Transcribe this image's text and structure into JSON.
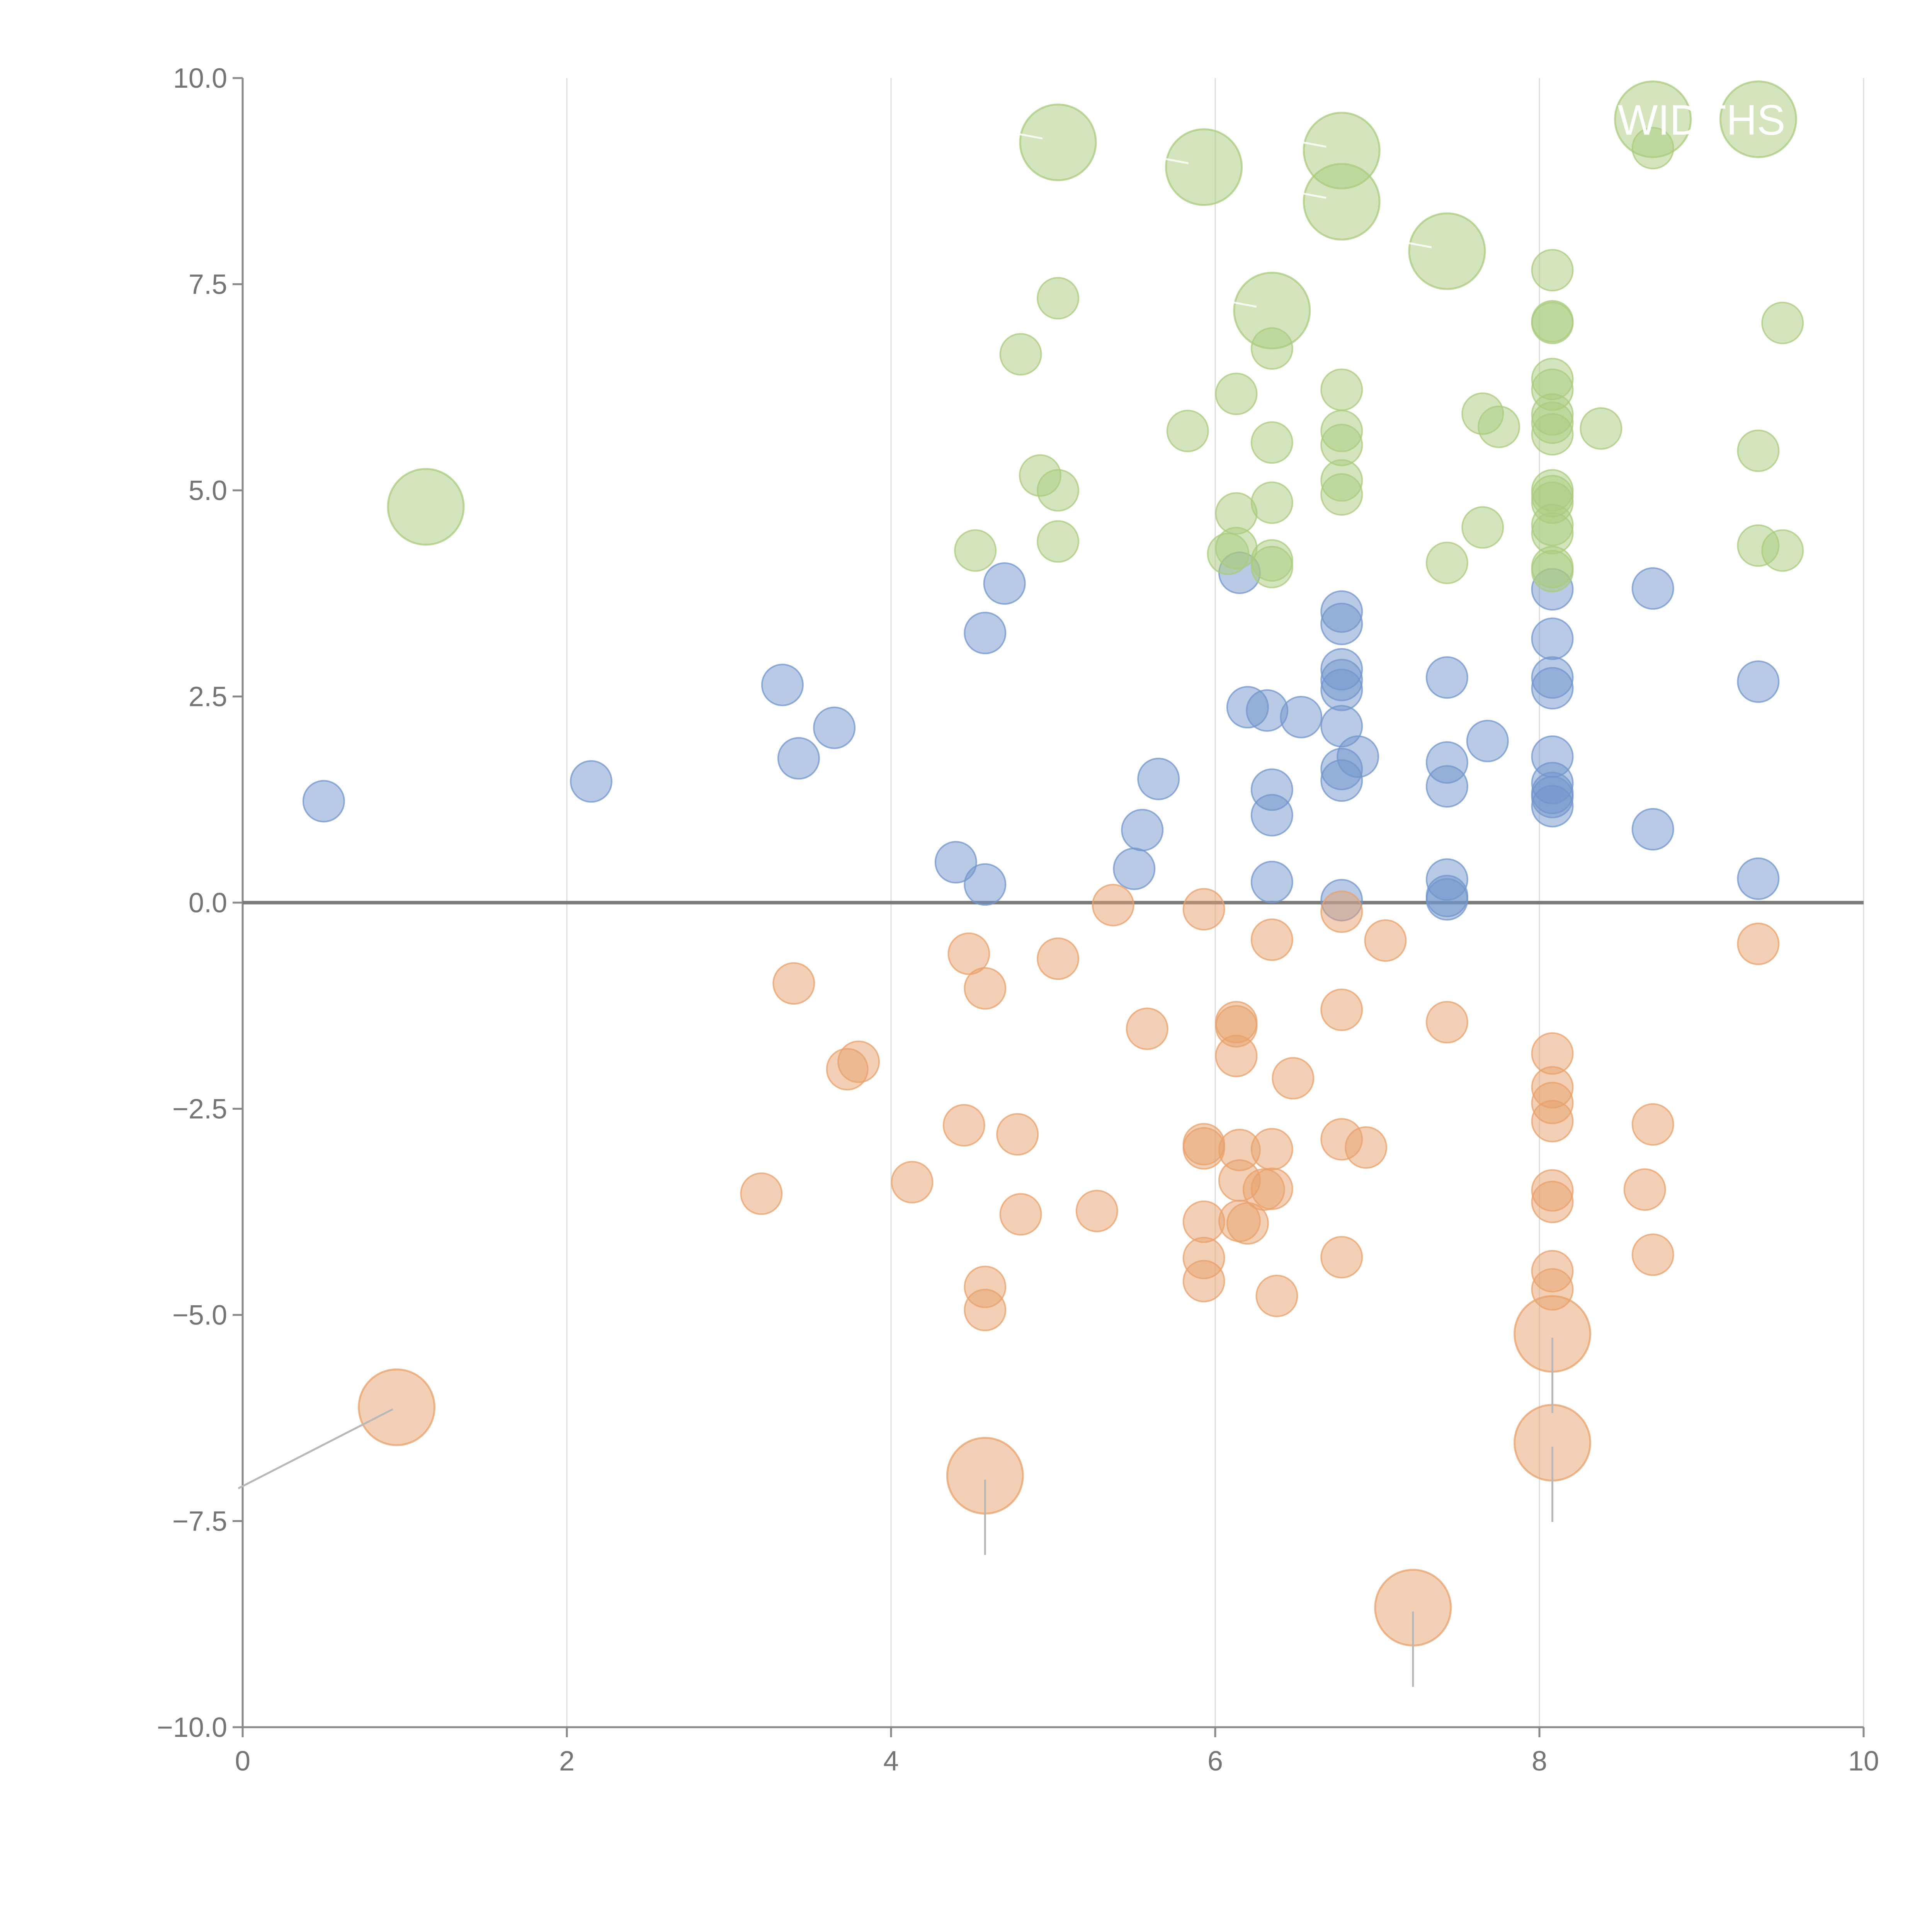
{
  "chart_data": {
    "type": "scatter",
    "title": "",
    "xlabel": "",
    "ylabel": "",
    "xlim": [
      0,
      10
    ],
    "ylim": [
      -10,
      10
    ],
    "x_ticks": [
      0,
      2,
      4,
      6,
      8,
      10
    ],
    "x_tick_labels": [
      "0",
      "2",
      "4",
      "6",
      "8",
      "10"
    ],
    "y_ticks": [
      10,
      7.5,
      5,
      2.5,
      0,
      -2.5,
      -5,
      -7.5,
      -10
    ],
    "y_tick_labels": [
      "10.0",
      "7.5",
      "5.0",
      "2.5",
      "0.0",
      "−2.5",
      "−5.0",
      "−7.5",
      "−10.0"
    ],
    "vertical_grid": true,
    "horizontal_grid": false,
    "zero_line": true,
    "legend": "none",
    "colors": {
      "blue": "#7295cc",
      "orange": "#e8a26b",
      "green": "#a9cb7e"
    },
    "series": [
      {
        "name": "blue",
        "color": "#7295cc",
        "points": [
          [
            0.5,
            1.23
          ],
          [
            2.15,
            1.47
          ],
          [
            3.33,
            2.64
          ],
          [
            3.43,
            1.75
          ],
          [
            3.65,
            2.12
          ],
          [
            4.58,
            3.27
          ],
          [
            4.7,
            3.87
          ],
          [
            4.4,
            0.49
          ],
          [
            4.58,
            0.22
          ],
          [
            5.5,
            0.41
          ],
          [
            5.55,
            0.88
          ],
          [
            5.65,
            1.5
          ],
          [
            6.15,
            4.0
          ],
          [
            6.2,
            2.37
          ],
          [
            6.32,
            2.33
          ],
          [
            6.35,
            1.37
          ],
          [
            6.35,
            1.06
          ],
          [
            6.35,
            0.25
          ],
          [
            6.53,
            2.25
          ],
          [
            6.78,
            3.53
          ],
          [
            6.78,
            3.38
          ],
          [
            6.78,
            2.83
          ],
          [
            6.78,
            2.7
          ],
          [
            6.78,
            2.58
          ],
          [
            6.78,
            2.14
          ],
          [
            6.78,
            1.62
          ],
          [
            6.78,
            1.48
          ],
          [
            6.88,
            1.77
          ],
          [
            6.78,
            0.03
          ],
          [
            7.43,
            2.73
          ],
          [
            7.43,
            1.7
          ],
          [
            7.43,
            1.41
          ],
          [
            7.43,
            0.28
          ],
          [
            7.43,
            0.08
          ],
          [
            7.43,
            0.04
          ],
          [
            7.68,
            1.96
          ],
          [
            8.08,
            3.8
          ],
          [
            8.08,
            3.2
          ],
          [
            8.08,
            2.73
          ],
          [
            8.08,
            2.6
          ],
          [
            8.08,
            1.77
          ],
          [
            8.08,
            1.45
          ],
          [
            8.08,
            1.33
          ],
          [
            8.08,
            1.28
          ],
          [
            8.08,
            1.17
          ],
          [
            8.7,
            3.81
          ],
          [
            8.7,
            0.89
          ],
          [
            9.35,
            2.68
          ],
          [
            9.35,
            0.29
          ]
        ]
      },
      {
        "name": "orange",
        "color": "#e8a26b",
        "points": [
          [
            3.2,
            -3.53
          ],
          [
            3.4,
            -0.98
          ],
          [
            3.73,
            -2.02
          ],
          [
            3.8,
            -1.93
          ],
          [
            4.13,
            -3.39
          ],
          [
            4.45,
            -2.7
          ],
          [
            4.48,
            -0.62
          ],
          [
            4.58,
            -1.04
          ],
          [
            4.58,
            -4.66
          ],
          [
            4.58,
            -4.94
          ],
          [
            4.78,
            -2.81
          ],
          [
            4.8,
            -3.78
          ],
          [
            5.03,
            -0.68
          ],
          [
            5.27,
            -3.74
          ],
          [
            5.37,
            -0.03
          ],
          [
            5.58,
            -1.53
          ],
          [
            5.93,
            -0.08
          ],
          [
            5.93,
            -2.93
          ],
          [
            5.93,
            -2.98
          ],
          [
            5.93,
            -3.87
          ],
          [
            5.93,
            -4.31
          ],
          [
            5.93,
            -4.59
          ],
          [
            6.13,
            -1.45
          ],
          [
            6.13,
            -1.5
          ],
          [
            6.13,
            -1.86
          ],
          [
            6.15,
            -3.0
          ],
          [
            6.15,
            -3.37
          ],
          [
            6.15,
            -3.86
          ],
          [
            6.2,
            -3.89
          ],
          [
            6.3,
            -3.48
          ],
          [
            6.35,
            -0.45
          ],
          [
            6.35,
            -2.99
          ],
          [
            6.35,
            -3.47
          ],
          [
            6.38,
            -4.77
          ],
          [
            6.48,
            -2.13
          ],
          [
            6.78,
            -0.11
          ],
          [
            6.78,
            -1.3
          ],
          [
            6.78,
            -2.87
          ],
          [
            6.78,
            -4.3
          ],
          [
            6.93,
            -2.97
          ],
          [
            7.05,
            -0.46
          ],
          [
            7.43,
            -1.45
          ],
          [
            8.08,
            -1.83
          ],
          [
            8.08,
            -2.24
          ],
          [
            8.08,
            -2.43
          ],
          [
            8.08,
            -2.65
          ],
          [
            8.08,
            -3.49
          ],
          [
            8.08,
            -3.63
          ],
          [
            8.08,
            -4.47
          ],
          [
            8.08,
            -4.69
          ],
          [
            8.7,
            -2.69
          ],
          [
            8.65,
            -3.48
          ],
          [
            8.7,
            -4.27
          ],
          [
            9.35,
            -0.5
          ]
        ]
      },
      {
        "name": "green",
        "color": "#a9cb7e",
        "points": [
          [
            4.52,
            4.27
          ],
          [
            4.8,
            6.65
          ],
          [
            4.92,
            5.18
          ],
          [
            5.03,
            7.33
          ],
          [
            5.03,
            5.0
          ],
          [
            5.03,
            4.38
          ],
          [
            5.83,
            5.72
          ],
          [
            6.08,
            4.23
          ],
          [
            6.13,
            6.17
          ],
          [
            6.13,
            4.72
          ],
          [
            6.13,
            4.3
          ],
          [
            6.35,
            6.72
          ],
          [
            6.35,
            5.58
          ],
          [
            6.35,
            4.85
          ],
          [
            6.35,
            4.15
          ],
          [
            6.35,
            4.07
          ],
          [
            6.78,
            6.22
          ],
          [
            6.78,
            5.72
          ],
          [
            6.78,
            5.55
          ],
          [
            6.78,
            5.12
          ],
          [
            6.78,
            4.95
          ],
          [
            7.43,
            4.12
          ],
          [
            7.65,
            5.93
          ],
          [
            7.65,
            4.55
          ],
          [
            7.75,
            5.77
          ],
          [
            8.08,
            7.67
          ],
          [
            8.08,
            7.05
          ],
          [
            8.08,
            7.03
          ],
          [
            8.08,
            6.35
          ],
          [
            8.08,
            6.22
          ],
          [
            8.08,
            5.92
          ],
          [
            8.08,
            5.82
          ],
          [
            8.08,
            5.68
          ],
          [
            8.08,
            5.0
          ],
          [
            8.08,
            4.93
          ],
          [
            8.08,
            4.85
          ],
          [
            8.08,
            4.58
          ],
          [
            8.08,
            4.48
          ],
          [
            8.08,
            4.07
          ],
          [
            8.08,
            4.02
          ],
          [
            8.38,
            5.75
          ],
          [
            8.7,
            9.15
          ],
          [
            9.35,
            5.48
          ],
          [
            9.35,
            4.33
          ],
          [
            9.5,
            7.03
          ],
          [
            9.5,
            4.27
          ]
        ]
      }
    ],
    "highlighted_points": [
      {
        "series": "green",
        "x": 1.13,
        "y": 4.8
      },
      {
        "series": "green",
        "x": 5.03,
        "y": 9.22
      },
      {
        "series": "green",
        "x": 5.93,
        "y": 8.92
      },
      {
        "series": "green",
        "x": 6.78,
        "y": 9.12
      },
      {
        "series": "green",
        "x": 6.78,
        "y": 8.5
      },
      {
        "series": "green",
        "x": 6.35,
        "y": 7.18
      },
      {
        "series": "green",
        "x": 7.43,
        "y": 7.9
      },
      {
        "series": "green",
        "x": 8.7,
        "y": 9.5
      },
      {
        "series": "green",
        "x": 9.35,
        "y": 9.5
      },
      {
        "series": "orange",
        "x": 0.95,
        "y": -6.12
      },
      {
        "series": "orange",
        "x": 4.58,
        "y": -6.95
      },
      {
        "series": "orange",
        "x": 7.22,
        "y": -8.55
      },
      {
        "series": "orange",
        "x": 8.08,
        "y": -5.23
      },
      {
        "series": "orange",
        "x": 8.08,
        "y": -6.55
      }
    ],
    "annotations": [
      "WIDTHS"
    ]
  }
}
